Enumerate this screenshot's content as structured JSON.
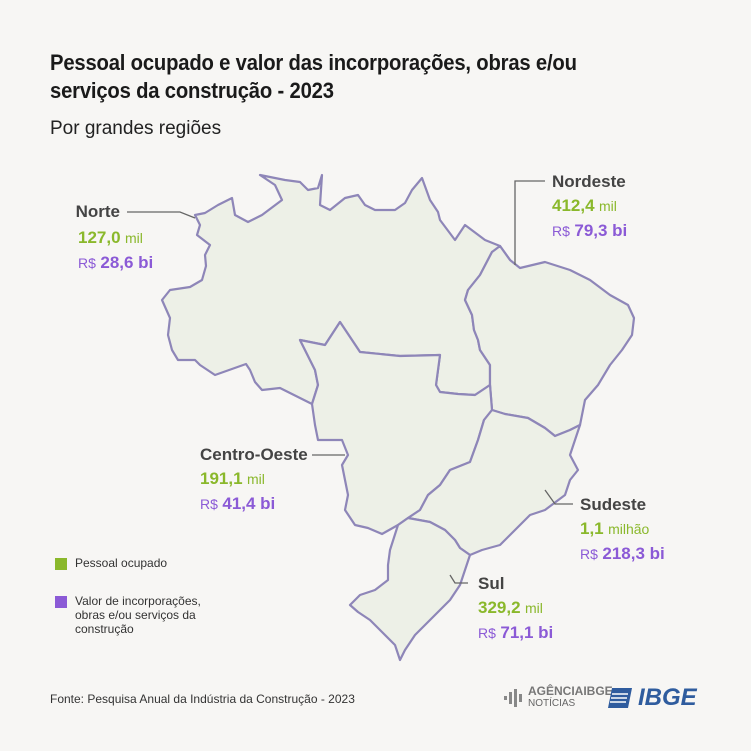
{
  "title": "Pessoal ocupado e valor das incorporações, obras e/ou serviços da construção - 2023",
  "subtitle": "Por grandes regiões",
  "colors": {
    "pessoal": "#8ab82b",
    "valor": "#8b5ad6",
    "map_fill": "#edf0e7",
    "map_border": "#8e86b8"
  },
  "regions": [
    {
      "name": "Norte",
      "pessoal": "127,0",
      "pessoal_unit": "mil",
      "currency": "R$",
      "valor": "28,6 bi"
    },
    {
      "name": "Nordeste",
      "pessoal": "412,4",
      "pessoal_unit": "mil",
      "currency": "R$",
      "valor": "79,3 bi"
    },
    {
      "name": "Centro-Oeste",
      "pessoal": "191,1",
      "pessoal_unit": "mil",
      "currency": "R$",
      "valor": "41,4 bi"
    },
    {
      "name": "Sudeste",
      "pessoal": "1,1",
      "pessoal_unit": "milhão",
      "currency": "R$",
      "valor": "218,3 bi"
    },
    {
      "name": "Sul",
      "pessoal": "329,2",
      "pessoal_unit": "mil",
      "currency": "R$",
      "valor": "71,1 bi"
    }
  ],
  "legend": {
    "pessoal": "Pessoal ocupado",
    "valor": "Valor de incorporações, obras e/ou serviços da construção"
  },
  "source": "Fonte: Pesquisa Anual da Indústria da Construção - 2023",
  "brand": {
    "agencia_a": "AGÊNCIA",
    "agencia_b": "IBGE",
    "noticias": "NOTÍCIAS",
    "ibge": "IBGE"
  }
}
